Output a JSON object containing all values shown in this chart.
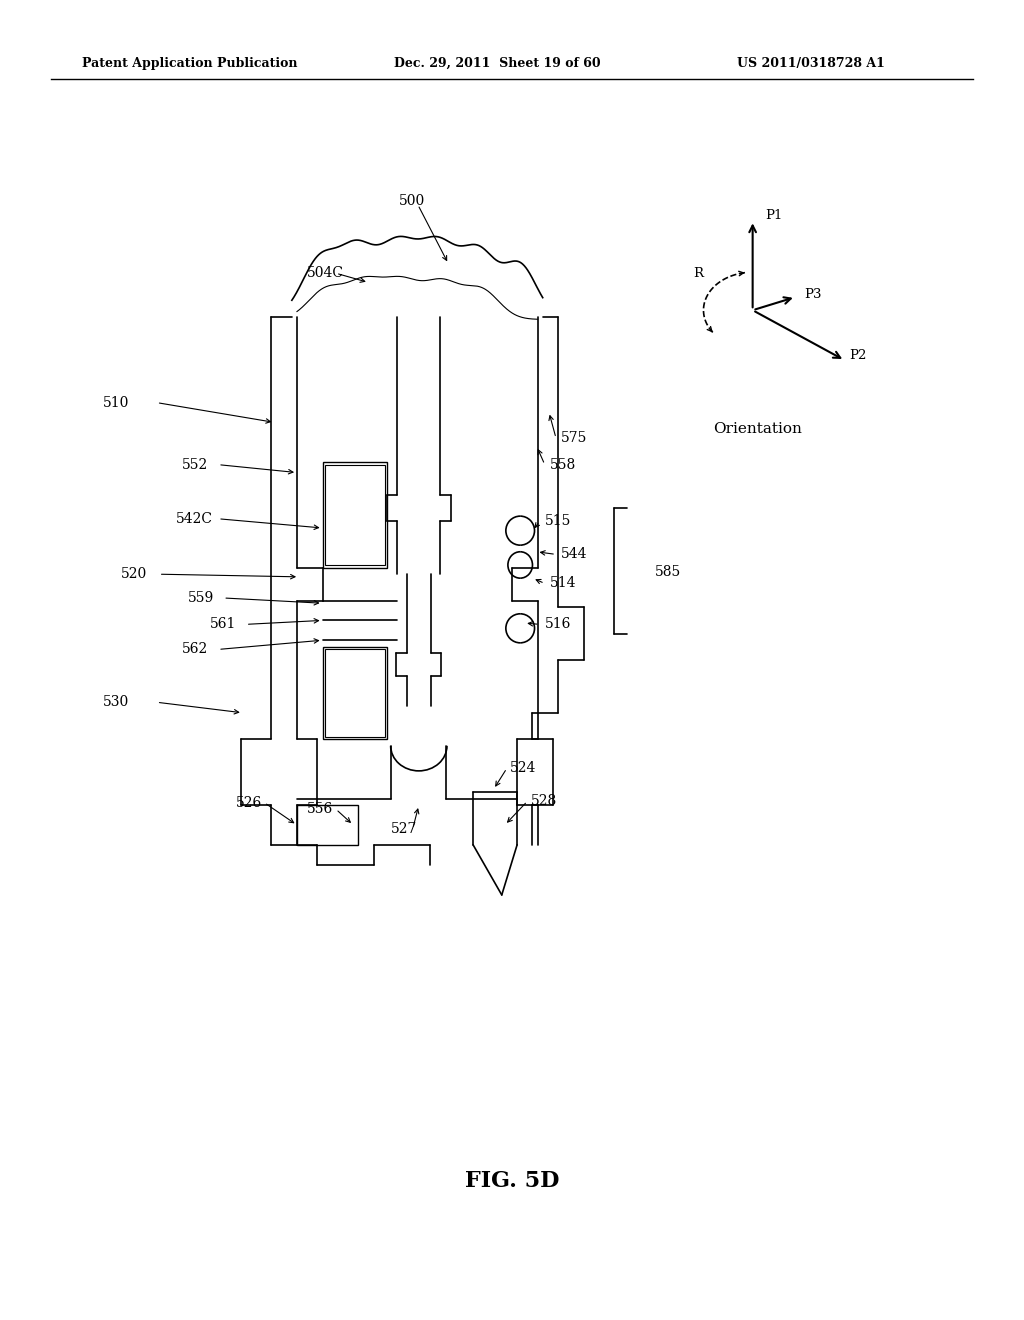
{
  "bg_color": "#ffffff",
  "header_left": "Patent Application Publication",
  "header_mid": "Dec. 29, 2011  Sheet 19 of 60",
  "header_right": "US 2011/0318728 A1",
  "fig_label": "FIG. 5D",
  "label_fontsize": 10,
  "orientation_label": "Orientation"
}
